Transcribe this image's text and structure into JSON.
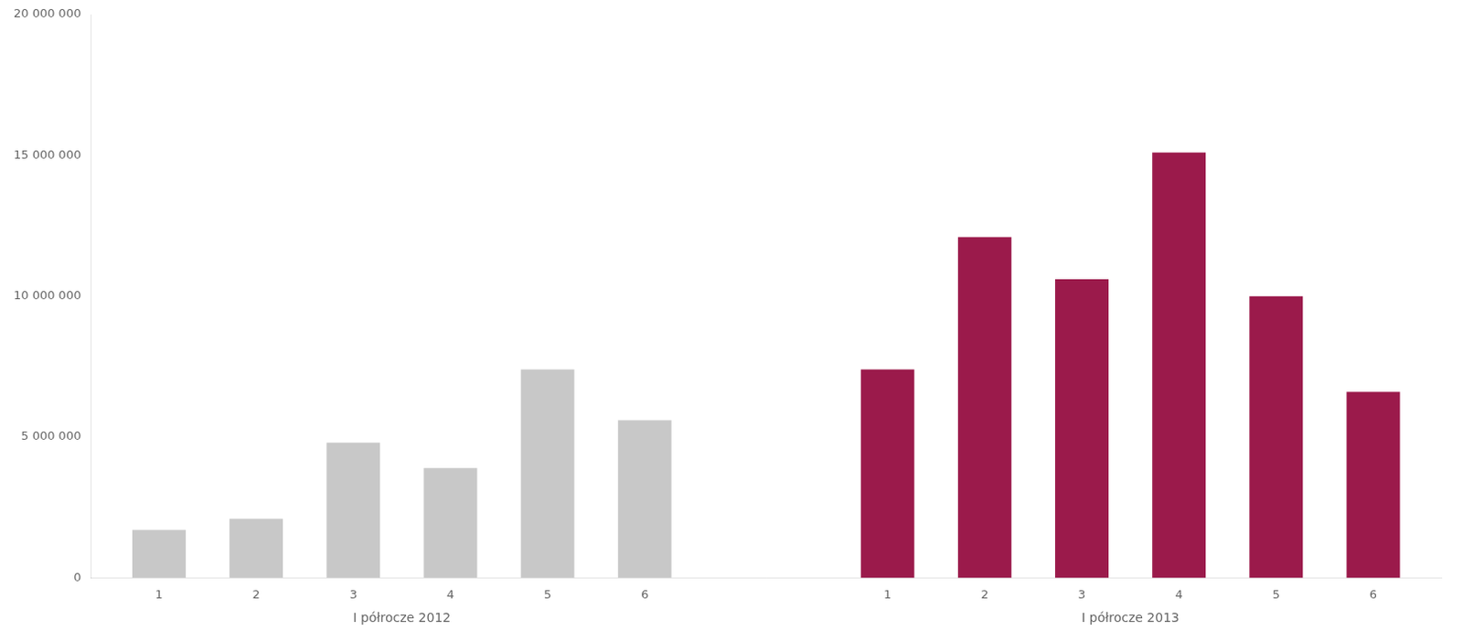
{
  "chart_data": {
    "type": "bar",
    "categories": [
      "1",
      "2",
      "3",
      "4",
      "5",
      "6",
      "1",
      "2",
      "3",
      "4",
      "5",
      "6"
    ],
    "values": [
      1700000,
      2100000,
      4800000,
      3900000,
      7400000,
      5600000,
      7400000,
      12100000,
      10600000,
      15100000,
      10000000,
      6600000
    ],
    "colors": [
      "#c8c8c8",
      "#c8c8c8",
      "#c8c8c8",
      "#c8c8c8",
      "#c8c8c8",
      "#c8c8c8",
      "#9b1a4b",
      "#9b1a4b",
      "#9b1a4b",
      "#9b1a4b",
      "#9b1a4b",
      "#9b1a4b"
    ],
    "annotations": [
      "I półrocze 2012",
      "I półrocze 2013"
    ],
    "ylim": [
      0,
      20000000
    ],
    "yticks": [
      0,
      {
        "value": 5000000,
        "label": "5 000 000"
      },
      {
        "value": 10000000,
        "label": "10 000 000"
      },
      {
        "value": 15000000,
        "label": "15 000 000"
      },
      {
        "value": 20000000,
        "label": "20 000 000"
      }
    ],
    "grid": false
  }
}
